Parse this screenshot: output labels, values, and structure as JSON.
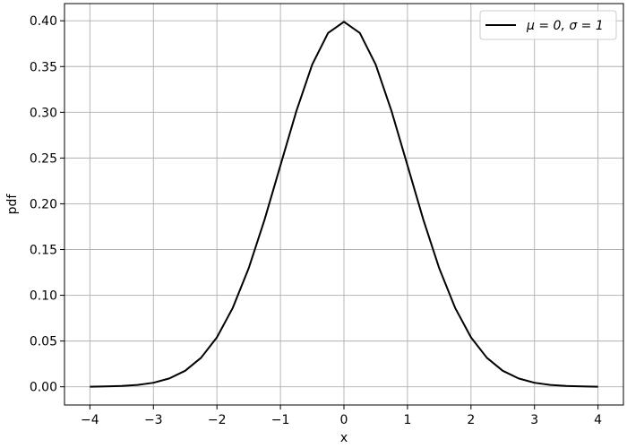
{
  "chart_data": {
    "type": "line",
    "xlabel": "x",
    "ylabel": "pdf",
    "xlim": [
      -4.4,
      4.4
    ],
    "ylim": [
      -0.0199,
      0.4188
    ],
    "grid": true,
    "legend_placement": "top-right",
    "x_ticks": [
      -4,
      -3,
      -2,
      -1,
      0,
      1,
      2,
      3,
      4
    ],
    "x_tick_labels": [
      "−4",
      "−3",
      "−2",
      "−1",
      "0",
      "1",
      "2",
      "3",
      "4"
    ],
    "y_ticks": [
      0.0,
      0.05,
      0.1,
      0.15,
      0.2,
      0.25,
      0.3,
      0.35,
      0.4
    ],
    "y_tick_labels": [
      "0.00",
      "0.05",
      "0.10",
      "0.15",
      "0.20",
      "0.25",
      "0.30",
      "0.35",
      "0.40"
    ],
    "series": [
      {
        "name": "μ = 0, σ = 1",
        "color": "#000000",
        "x": [
          -4.0,
          -3.75,
          -3.5,
          -3.25,
          -3.0,
          -2.75,
          -2.5,
          -2.25,
          -2.0,
          -1.75,
          -1.5,
          -1.25,
          -1.0,
          -0.75,
          -0.5,
          -0.25,
          0.0,
          0.25,
          0.5,
          0.75,
          1.0,
          1.25,
          1.5,
          1.75,
          2.0,
          2.25,
          2.5,
          2.75,
          3.0,
          3.25,
          3.5,
          3.75,
          4.0
        ],
        "values": [
          0.0001,
          0.0004,
          0.0009,
          0.002,
          0.0044,
          0.0091,
          0.0175,
          0.0317,
          0.054,
          0.0863,
          0.1295,
          0.1826,
          0.242,
          0.3011,
          0.3521,
          0.3867,
          0.3989,
          0.3867,
          0.3521,
          0.3011,
          0.242,
          0.1826,
          0.1295,
          0.0863,
          0.054,
          0.0317,
          0.0175,
          0.0091,
          0.0044,
          0.002,
          0.0009,
          0.0004,
          0.0001
        ]
      }
    ]
  }
}
